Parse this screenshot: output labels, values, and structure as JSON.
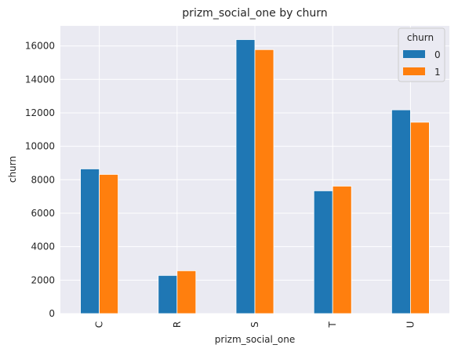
{
  "chart_data": {
    "type": "bar",
    "title": "prizm_social_one by churn",
    "xlabel": "prizm_social_one",
    "ylabel": "churn",
    "categories": [
      "C",
      "R",
      "S",
      "T",
      "U"
    ],
    "series": [
      {
        "name": "0",
        "color": "#1f77b4",
        "values": [
          8650,
          2280,
          16380,
          7340,
          12180
        ]
      },
      {
        "name": "1",
        "color": "#ff7f0e",
        "values": [
          8320,
          2560,
          15780,
          7620,
          11440
        ]
      }
    ],
    "ylim": [
      0,
      17200
    ],
    "yticks": [
      0,
      2000,
      4000,
      6000,
      8000,
      10000,
      12000,
      14000,
      16000
    ],
    "legend": {
      "title": "churn",
      "placement": "top-right"
    },
    "grid": true,
    "background": "#eaeaf2"
  }
}
